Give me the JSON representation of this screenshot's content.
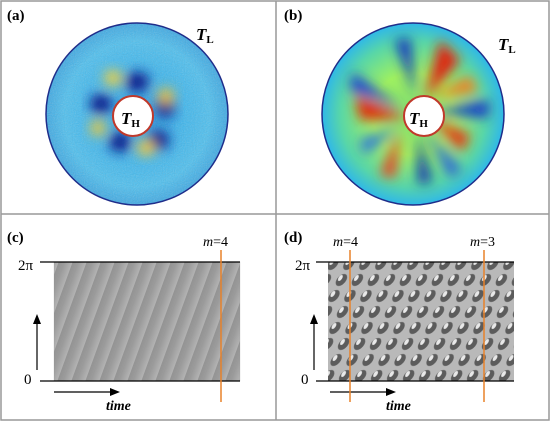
{
  "panels": {
    "a": {
      "label": "(a)",
      "outer_label": "T",
      "outer_sub": "L",
      "inner_label": "T",
      "inner_sub": "H"
    },
    "b": {
      "label": "(b)",
      "outer_label": "T",
      "outer_sub": "L",
      "inner_label": "T",
      "inner_sub": "H"
    },
    "c": {
      "label": "(c)",
      "y_top": "2π",
      "y_bottom": "0",
      "x_label": "time",
      "marker_m": "m",
      "marker_eq": "=4",
      "marker_fraction": 0.92
    },
    "d": {
      "label": "(d)",
      "y_top": "2π",
      "y_bottom": "0",
      "x_label": "time",
      "markers": [
        {
          "m": "m",
          "eq": "=4",
          "fraction": 0.1
        },
        {
          "m": "m",
          "eq": "=3",
          "fraction": 0.82
        }
      ]
    }
  },
  "colors": {
    "frame": "#999999",
    "marker": "#e8822a",
    "inner_circle": "#c0392b",
    "outer_circle": "#1f2d8a"
  }
}
